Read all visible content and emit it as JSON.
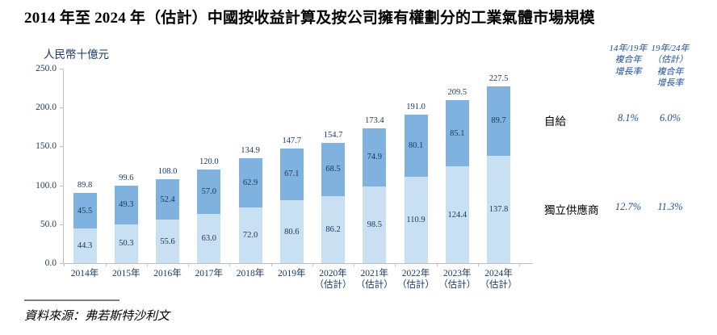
{
  "title": "2014 年至 2024 年（估計）中國按收益計算及按公司擁有權劃分的工業氣體市場規模",
  "source": "資料來源：弗若斯特沙利文",
  "chart_data": {
    "type": "bar",
    "stacked": true,
    "title": "2014 年至 2024 年（估計）中國按收益計算及按公司擁有權劃分的工業氣體市場規模",
    "xlabel": "",
    "ylabel": "人民幣十億元",
    "ylim": [
      0,
      250
    ],
    "grid": false,
    "legend_position": "none",
    "yticks": [
      {
        "v": 0,
        "label": "0.0"
      },
      {
        "v": 50,
        "label": "50.0"
      },
      {
        "v": 100,
        "label": "100.0"
      },
      {
        "v": 150,
        "label": "150.0"
      },
      {
        "v": 200,
        "label": "200.0"
      },
      {
        "v": 250,
        "label": "250.0"
      }
    ],
    "categories": [
      "2014年",
      "2015年",
      "2016年",
      "2017年",
      "2018年",
      "2019年",
      "2020年\n（估計）",
      "2021年\n（估計）",
      "2022年\n（估計）",
      "2023年\n（估計）",
      "2024年\n（估計）"
    ],
    "series": [
      {
        "key": "independent",
        "name": "獨立供應商",
        "color": "#C9DFF2",
        "values": [
          44.3,
          50.3,
          55.6,
          63.0,
          72.0,
          80.6,
          86.2,
          98.5,
          110.9,
          124.4,
          137.8
        ]
      },
      {
        "key": "self-supply",
        "name": "自給",
        "color": "#7FB2DE",
        "values": [
          45.5,
          49.3,
          52.4,
          57.0,
          62.9,
          67.1,
          68.5,
          74.9,
          80.1,
          85.1,
          89.7
        ]
      }
    ],
    "totals": [
      89.8,
      99.6,
      108.0,
      120.0,
      134.9,
      147.7,
      154.7,
      173.4,
      191.0,
      209.5,
      227.5
    ],
    "value_label_color": "#17375E",
    "axis_color": "#BFBFBF"
  },
  "growth_table": {
    "accent_color": "#1F4E98",
    "columns": [
      "14年/19年\n複合年\n增長率",
      "19年/24年\n（估計）\n複合年\n增長率"
    ],
    "rows": [
      {
        "label": "自給",
        "values": [
          "8.1%",
          "6.0%"
        ]
      },
      {
        "label": "獨立供應商",
        "values": [
          "12.7%",
          "11.3%"
        ]
      }
    ]
  }
}
